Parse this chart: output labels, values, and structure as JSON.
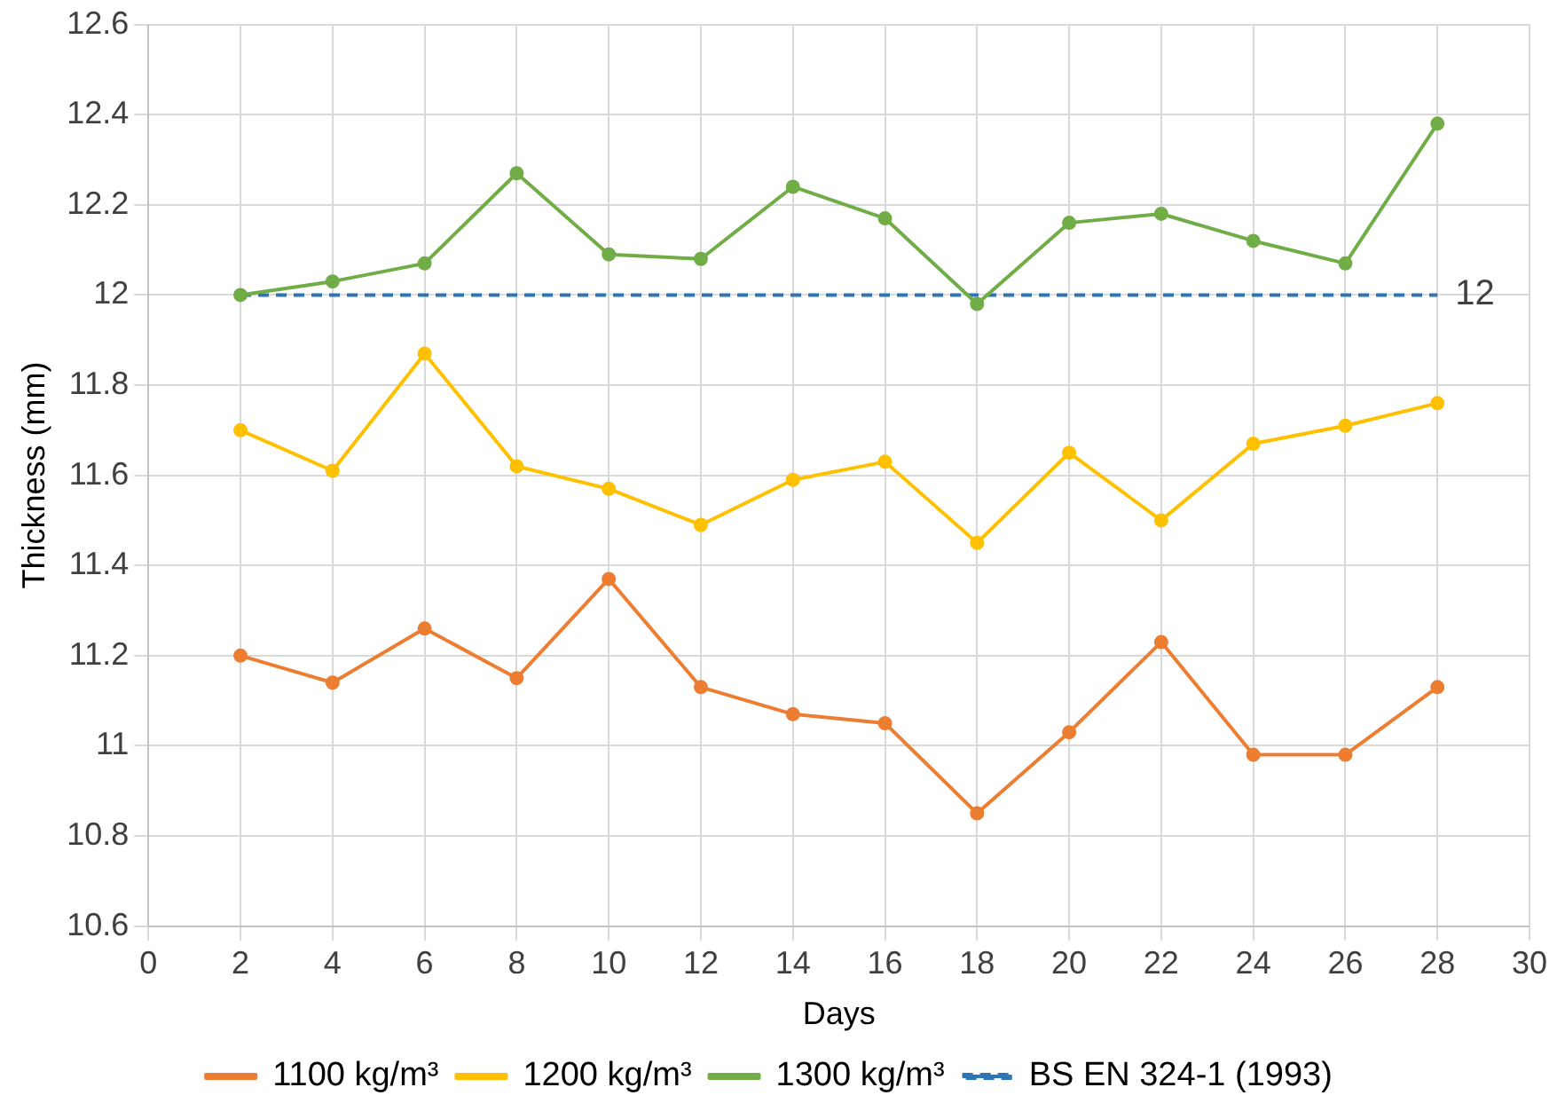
{
  "chart_data": {
    "type": "line",
    "xlabel": "Days",
    "ylabel": "Thickness (mm)",
    "x": [
      2,
      4,
      6,
      8,
      10,
      12,
      14,
      16,
      18,
      20,
      22,
      24,
      26,
      28
    ],
    "series": [
      {
        "name": "1100 kg/m³",
        "color": "#ed7d31",
        "marker": "circle",
        "values": [
          11.2,
          11.14,
          11.26,
          11.15,
          11.37,
          11.13,
          11.07,
          11.05,
          10.85,
          11.03,
          11.23,
          10.98,
          10.98,
          11.13
        ]
      },
      {
        "name": "1200 kg/m³",
        "color": "#ffc000",
        "marker": "circle",
        "values": [
          11.7,
          11.61,
          11.87,
          11.62,
          11.57,
          11.49,
          11.59,
          11.63,
          11.45,
          11.65,
          11.5,
          11.67,
          11.71,
          11.76
        ]
      },
      {
        "name": "1300 kg/m³",
        "color": "#70ad47",
        "marker": "circle",
        "values": [
          12.0,
          12.03,
          12.07,
          12.27,
          12.09,
          12.08,
          12.24,
          12.17,
          11.98,
          12.16,
          12.18,
          12.12,
          12.07,
          12.38
        ]
      },
      {
        "name": "BS EN 324-1 (1993)",
        "color": "#2e75b6",
        "marker": "none",
        "line_style": "dashed",
        "x": [
          2,
          28
        ],
        "values": [
          12,
          12
        ],
        "value_labels": [
          null,
          "12"
        ]
      }
    ],
    "xlim": [
      0,
      30
    ],
    "xticks": [
      0,
      2,
      4,
      6,
      8,
      10,
      12,
      14,
      16,
      18,
      20,
      22,
      24,
      26,
      28,
      30
    ],
    "ylim": [
      10.6,
      12.6
    ],
    "yticks": [
      10.6,
      10.8,
      11,
      11.2,
      11.4,
      11.6,
      11.8,
      12,
      12.2,
      12.4,
      12.6
    ],
    "grid": true,
    "legend": "bottom"
  }
}
